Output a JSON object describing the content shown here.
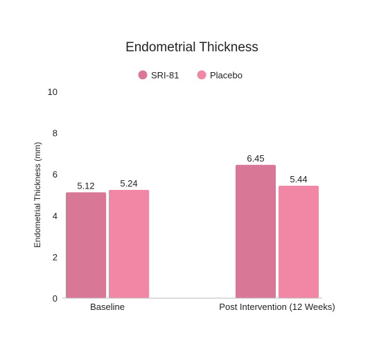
{
  "chart_data": {
    "type": "bar",
    "title": "Endometrial Thickness",
    "xlabel": "",
    "ylabel": "Endometrial Thickness (mm)",
    "ylim": [
      0,
      10
    ],
    "yticks": [
      0,
      2,
      4,
      6,
      8,
      10
    ],
    "categories": [
      "Baseline",
      "Post Intervention (12 Weeks)"
    ],
    "series": [
      {
        "name": "SRI-81",
        "values": [
          5.12,
          6.45
        ],
        "labels": [
          "5.12",
          "6.45"
        ],
        "color": "#d97796"
      },
      {
        "name": "Placebo",
        "values": [
          5.24,
          5.44
        ],
        "labels": [
          "5.24",
          "5.44"
        ],
        "color": "#f287a5"
      }
    ],
    "legend_position": "top-center",
    "grid": false
  }
}
